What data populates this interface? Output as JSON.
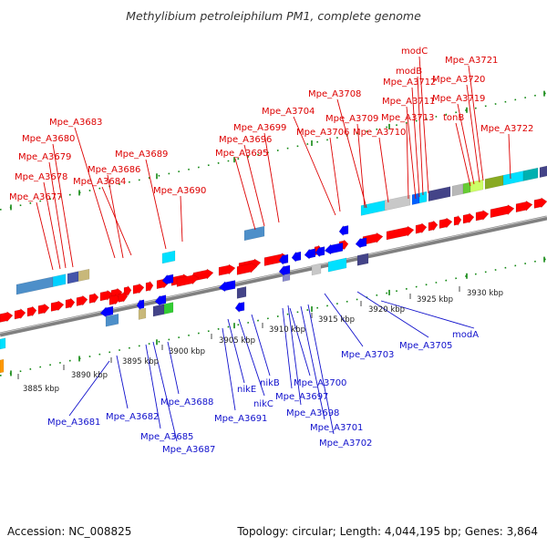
{
  "header": {
    "title": "Methylibium petroleiphilum PM1, complete genome"
  },
  "footer": {
    "accession": "Accession: NC_008825",
    "topology": "Topology: circular; Length: 4,044,195 bp; Genes: 3,864"
  },
  "colors": {
    "plus_label": "#dd0000",
    "minus_label": "#1010cc",
    "plus_gene": "#ff0000",
    "minus_gene": "#0000ff",
    "backbone": "#808080",
    "dots": "#118811"
  },
  "scale_ticks": [
    "3885 kbp",
    "3890 kbp",
    "3895 kbp",
    "3900 kbp",
    "3905 kbp",
    "3910 kbp",
    "3915 kbp",
    "3920 kbp",
    "3925 kbp",
    "3930 kbp"
  ],
  "forward_labels": [
    "Mpe_A3677",
    "Mpe_A3678",
    "Mpe_A3679",
    "Mpe_A3680",
    "Mpe_A3683",
    "Mpe_A3684",
    "Mpe_A3686",
    "Mpe_A3689",
    "Mpe_A3690",
    "Mpe_A3695",
    "Mpe_A3696",
    "Mpe_A3699",
    "Mpe_A3704",
    "Mpe_A3706",
    "Mpe_A3708",
    "Mpe_A3709",
    "Mpe_A3710",
    "Mpe_A3711",
    "Mpe_A3712",
    "modB",
    "modC",
    "Mpe_A3713",
    "tonB",
    "Mpe_A3719",
    "Mpe_A3720",
    "Mpe_A3721",
    "Mpe_A3722"
  ],
  "reverse_labels": [
    "Mpe_A3681",
    "Mpe_A3682",
    "Mpe_A3685",
    "Mpe_A3687",
    "Mpe_A3688",
    "Mpe_A3691",
    "nikE",
    "nikC",
    "nikB",
    "Mpe_A3697",
    "Mpe_A3698",
    "Mpe_A3700",
    "Mpe_A3701",
    "Mpe_A3702",
    "Mpe_A3703",
    "Mpe_A3705",
    "modA"
  ]
}
